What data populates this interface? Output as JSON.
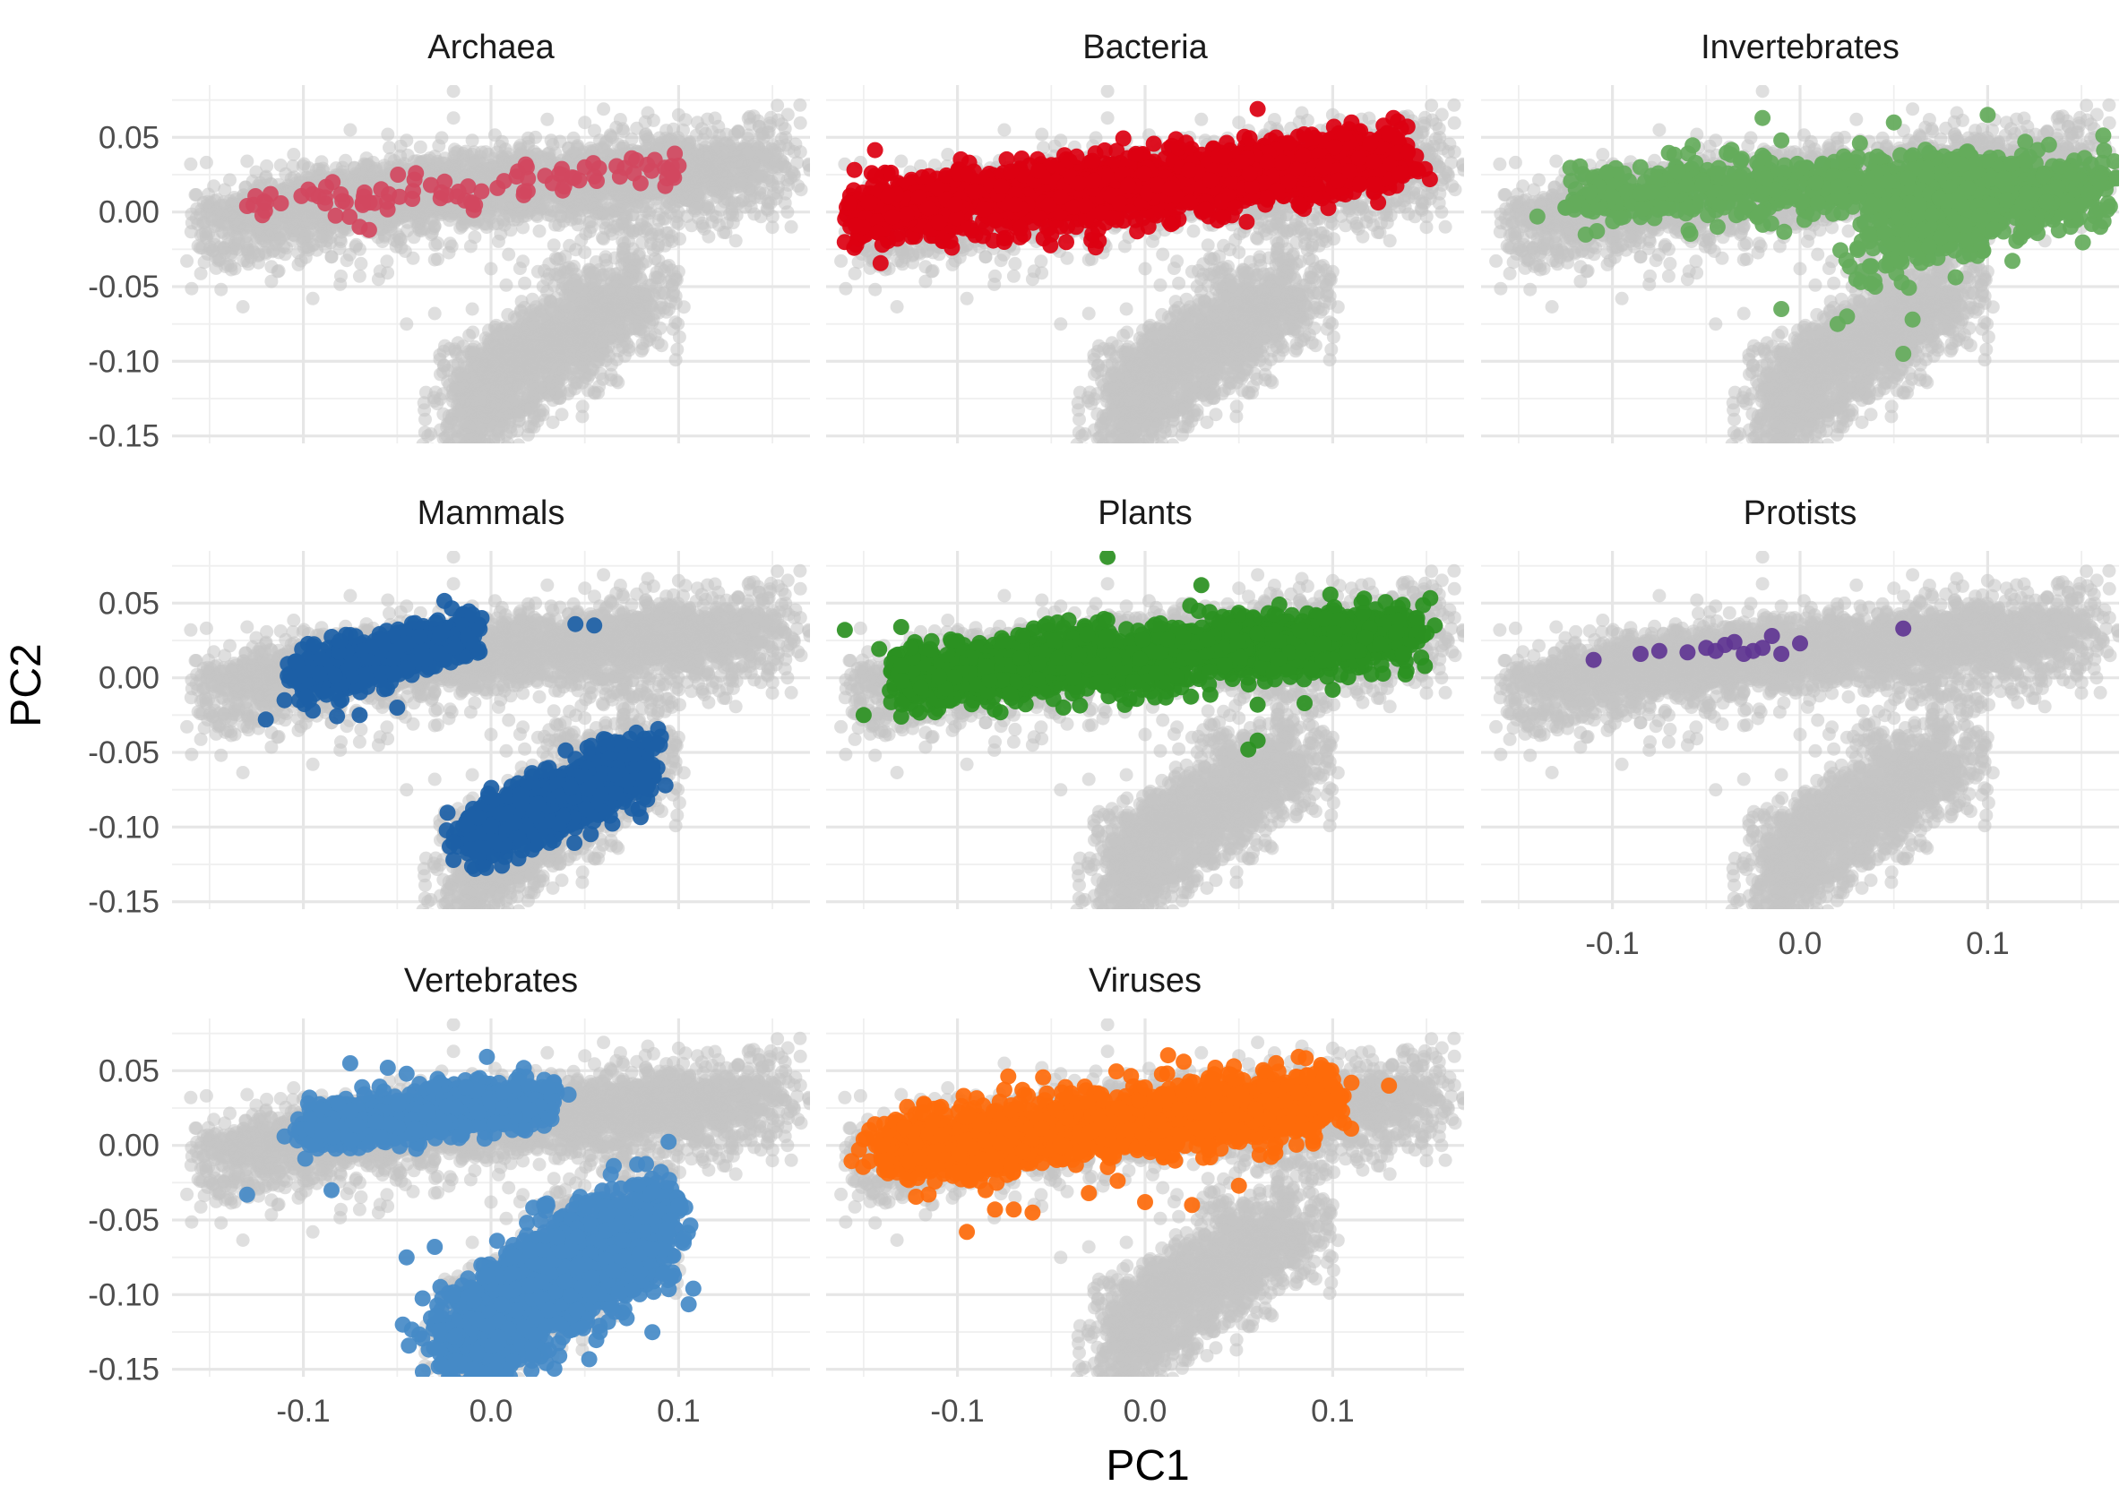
{
  "chart_data": {
    "type": "scatter",
    "title": "",
    "xlabel": "PC1",
    "ylabel": "PC2",
    "xlim": [
      -0.17,
      0.17
    ],
    "ylim": [
      -0.155,
      0.085
    ],
    "x_ticks": [
      -0.1,
      0.0,
      0.1
    ],
    "x_tick_labels": [
      "-0.1",
      "0.0",
      "0.1"
    ],
    "y_ticks": [
      0.05,
      0.0,
      -0.05,
      -0.1,
      -0.15
    ],
    "y_tick_labels": [
      "0.05",
      "0.00",
      "-0.05",
      "-0.10",
      "-0.15"
    ],
    "grid": true,
    "legend": "none",
    "layout": "facet grid 3 columns x 3 rows, shared axes",
    "background_color": "#c4c4c4",
    "background_description": "all points from every group drawn in grey in every panel",
    "panels": [
      {
        "name": "Archaea",
        "color": "#d1485f",
        "clusters": [
          {
            "x": [
              -0.13,
              0.1
            ],
            "y": [
              0.003,
              0.03
            ],
            "spread": 0.006,
            "n": 90
          }
        ],
        "points": [
          [
            -0.13,
            0.004
          ],
          [
            -0.12,
            0.006
          ],
          [
            -0.095,
            0.012
          ],
          [
            -0.07,
            -0.01
          ],
          [
            -0.065,
            -0.012
          ],
          [
            0.075,
            0.036
          ],
          [
            0.1,
            0.031
          ],
          [
            -0.04,
            0.026
          ],
          [
            0.05,
            0.03
          ]
        ]
      },
      {
        "name": "Bacteria",
        "color": "#dc0011",
        "clusters": [
          {
            "x": [
              -0.155,
              0.14
            ],
            "y": [
              0.0,
              0.035
            ],
            "spread": 0.011,
            "n": 1800
          }
        ],
        "points": [
          [
            -0.155,
            -0.024
          ],
          [
            -0.14,
            -0.022
          ],
          [
            0.06,
            0.069
          ],
          [
            0.14,
            0.04
          ],
          [
            0.13,
            0.052
          ],
          [
            -0.05,
            -0.015
          ],
          [
            0.11,
            0.06
          ]
        ]
      },
      {
        "name": "Invertebrates",
        "color": "#64ab5b",
        "clusters": [
          {
            "x": [
              -0.12,
              0.12
            ],
            "y": [
              0.01,
              0.025
            ],
            "spread": 0.01,
            "n": 700
          },
          {
            "x": [
              0.04,
              0.16
            ],
            "y": [
              -0.005,
              0.015
            ],
            "spread": 0.012,
            "n": 600
          },
          {
            "x": [
              0.03,
              0.09
            ],
            "y": [
              -0.035,
              -0.02
            ],
            "spread": 0.01,
            "n": 60
          }
        ],
        "points": [
          [
            -0.14,
            -0.003
          ],
          [
            -0.125,
            0.003
          ],
          [
            -0.1,
            0.01
          ],
          [
            -0.01,
            0.048
          ],
          [
            -0.02,
            0.063
          ],
          [
            0.05,
            0.06
          ],
          [
            0.1,
            0.065
          ],
          [
            0.12,
            0.047
          ],
          [
            0.16,
            -0.01
          ],
          [
            0.155,
            0.032
          ],
          [
            -0.01,
            -0.065
          ],
          [
            0.02,
            -0.075
          ],
          [
            0.025,
            -0.07
          ],
          [
            0.06,
            -0.072
          ],
          [
            0.055,
            -0.095
          ],
          [
            0.03,
            -0.045
          ],
          [
            0.04,
            -0.05
          ]
        ]
      },
      {
        "name": "Mammals",
        "color": "#1c5fa6",
        "clusters": [
          {
            "x": [
              -0.1,
              -0.01
            ],
            "y": [
              0.0,
              0.03
            ],
            "spread": 0.008,
            "n": 600
          },
          {
            "x": [
              -0.01,
              0.08
            ],
            "y": [
              -0.105,
              -0.06
            ],
            "spread": 0.01,
            "n": 1200
          }
        ],
        "points": [
          [
            -0.11,
            -0.015
          ],
          [
            -0.12,
            -0.028
          ],
          [
            -0.095,
            -0.022
          ],
          [
            -0.07,
            -0.025
          ],
          [
            -0.05,
            -0.02
          ],
          [
            -0.005,
            0.04
          ],
          [
            0.045,
            0.036
          ],
          [
            0.055,
            0.035
          ],
          [
            0.09,
            -0.045
          ],
          [
            0.085,
            -0.062
          ],
          [
            -0.02,
            -0.122
          ]
        ]
      },
      {
        "name": "Plants",
        "color": "#2b9122",
        "clusters": [
          {
            "x": [
              -0.13,
              0.14
            ],
            "y": [
              0.0,
              0.03
            ],
            "spread": 0.01,
            "n": 2000
          }
        ],
        "points": [
          [
            -0.16,
            0.032
          ],
          [
            -0.13,
            0.034
          ],
          [
            -0.15,
            -0.025
          ],
          [
            -0.13,
            -0.026
          ],
          [
            -0.02,
            0.081
          ],
          [
            0.03,
            0.062
          ],
          [
            0.06,
            -0.018
          ],
          [
            0.085,
            -0.017
          ],
          [
            0.1,
            -0.008
          ],
          [
            0.055,
            -0.048
          ],
          [
            0.06,
            -0.042
          ],
          [
            0.15,
            0.03
          ],
          [
            0.145,
            0.04
          ]
        ]
      },
      {
        "name": "Protists",
        "color": "#5f3592",
        "points": [
          [
            -0.11,
            0.012
          ],
          [
            -0.085,
            0.016
          ],
          [
            -0.075,
            0.018
          ],
          [
            -0.06,
            0.017
          ],
          [
            -0.05,
            0.02
          ],
          [
            -0.045,
            0.018
          ],
          [
            -0.04,
            0.022
          ],
          [
            -0.035,
            0.024
          ],
          [
            -0.025,
            0.018
          ],
          [
            -0.02,
            0.02
          ],
          [
            -0.015,
            0.028
          ],
          [
            -0.01,
            0.016
          ],
          [
            0.0,
            0.023
          ],
          [
            0.055,
            0.033
          ],
          [
            -0.03,
            0.016
          ]
        ]
      },
      {
        "name": "Vertebrates",
        "color": "#458ac7",
        "clusters": [
          {
            "x": [
              -0.1,
              0.03
            ],
            "y": [
              0.01,
              0.03
            ],
            "spread": 0.008,
            "n": 800
          },
          {
            "x": [
              -0.02,
              0.09
            ],
            "y": [
              -0.135,
              -0.05
            ],
            "spread": 0.018,
            "n": 1800
          }
        ],
        "points": [
          [
            -0.13,
            -0.033
          ],
          [
            -0.11,
            0.006
          ],
          [
            -0.09,
            0.01
          ],
          [
            -0.085,
            -0.03
          ],
          [
            -0.075,
            0.055
          ],
          [
            -0.055,
            0.052
          ],
          [
            -0.045,
            0.048
          ],
          [
            0.1,
            -0.04
          ],
          [
            -0.045,
            -0.075
          ],
          [
            -0.03,
            -0.068
          ],
          [
            -0.01,
            -0.15
          ]
        ]
      },
      {
        "name": "Viruses",
        "color": "#fe6b0b",
        "clusters": [
          {
            "x": [
              -0.14,
              0.1
            ],
            "y": [
              -0.003,
              0.03
            ],
            "spread": 0.011,
            "n": 2000
          }
        ],
        "points": [
          [
            -0.15,
            0.004
          ],
          [
            -0.14,
            0.0
          ],
          [
            -0.095,
            -0.058
          ],
          [
            -0.08,
            -0.043
          ],
          [
            -0.07,
            -0.043
          ],
          [
            -0.06,
            -0.045
          ],
          [
            -0.085,
            -0.03
          ],
          [
            0.0,
            -0.038
          ],
          [
            0.025,
            -0.04
          ],
          [
            0.05,
            -0.027
          ],
          [
            0.13,
            0.04
          ],
          [
            0.11,
            0.042
          ],
          [
            -0.03,
            -0.032
          ]
        ]
      }
    ]
  }
}
